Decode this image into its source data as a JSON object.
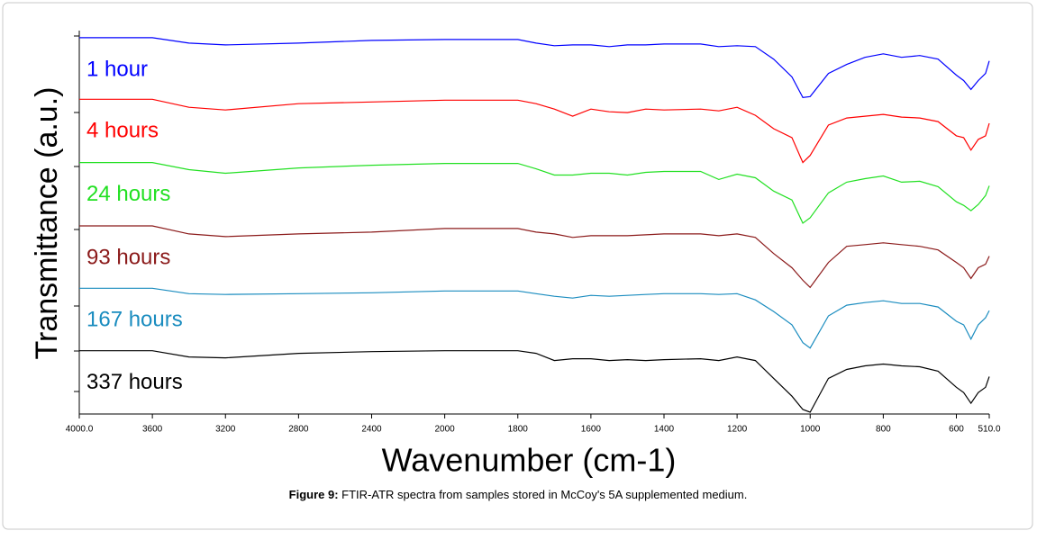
{
  "chart_data": {
    "type": "line",
    "xlabel": "Wavenumber (cm-1)",
    "ylabel": "Transmittance (a.u.)",
    "caption": {
      "label": "Figure 9:",
      "text": "FTIR-ATR spectra from samples stored in McCoy's 5A supplemented medium."
    },
    "x": [
      4000,
      3600,
      3400,
      3200,
      2800,
      2400,
      2000,
      1800,
      1750,
      1700,
      1650,
      1600,
      1550,
      1500,
      1450,
      1400,
      1300,
      1250,
      1200,
      1150,
      1100,
      1050,
      1020,
      1000,
      950,
      900,
      850,
      800,
      750,
      700,
      650,
      600,
      580,
      560,
      540,
      520,
      510
    ],
    "xlim": [
      4000,
      510
    ],
    "xticks": [
      {
        "value": 4000,
        "label": "4000.0"
      },
      3600,
      3200,
      2800,
      2400,
      2000,
      1800,
      1600,
      1400,
      1200,
      1000,
      800,
      600,
      {
        "value": 510,
        "label": "510.0"
      }
    ],
    "ylim": [
      0,
      430
    ],
    "series": [
      {
        "name": "1 hour",
        "color": "#0000ff",
        "values": [
          422,
          422,
          416,
          414,
          416,
          419,
          420,
          420,
          416,
          413,
          414,
          414,
          412,
          414,
          414,
          415,
          415,
          412,
          413,
          412,
          398,
          378,
          355,
          356,
          382,
          392,
          400,
          404,
          400,
          402,
          398,
          380,
          374,
          364,
          374,
          382,
          396
        ]
      },
      {
        "name": "4 hours",
        "color": "#ff0000",
        "values": [
          353,
          353,
          344,
          341,
          348,
          350,
          352,
          352,
          348,
          342,
          334,
          342,
          339,
          338,
          342,
          341,
          342,
          340,
          344,
          335,
          320,
          310,
          282,
          290,
          324,
          332,
          334,
          336,
          333,
          332,
          328,
          312,
          310,
          296,
          308,
          312,
          326
        ]
      },
      {
        "name": "24 hours",
        "color": "#22e022",
        "values": [
          282,
          282,
          274,
          270,
          276,
          279,
          281,
          281,
          275,
          268,
          268,
          270,
          270,
          268,
          271,
          272,
          272,
          263,
          269,
          265,
          250,
          240,
          214,
          220,
          248,
          260,
          264,
          267,
          260,
          261,
          255,
          238,
          234,
          228,
          235,
          245,
          256
        ]
      },
      {
        "name": "93 hours",
        "color": "#8b1a1a",
        "values": [
          211,
          211,
          202,
          199,
          202,
          204,
          208,
          208,
          204,
          202,
          198,
          200,
          200,
          200,
          201,
          202,
          202,
          200,
          202,
          198,
          180,
          164,
          150,
          142,
          170,
          188,
          190,
          192,
          190,
          188,
          184,
          170,
          164,
          152,
          164,
          168,
          177
        ]
      },
      {
        "name": "167 hours",
        "color": "#1a8cbf",
        "values": [
          141,
          141,
          135,
          134,
          135,
          136,
          138,
          138,
          135,
          132,
          130,
          133,
          132,
          133,
          134,
          135,
          135,
          134,
          135,
          128,
          115,
          100,
          80,
          74,
          110,
          122,
          125,
          127,
          124,
          124,
          120,
          104,
          100,
          84,
          100,
          108,
          116
        ]
      },
      {
        "name": "337 hours",
        "color": "#000000",
        "values": [
          71,
          71,
          64,
          63,
          68,
          70,
          71,
          71,
          68,
          60,
          62,
          62,
          60,
          61,
          60,
          61,
          62,
          60,
          64,
          60,
          40,
          20,
          5,
          2,
          40,
          50,
          54,
          56,
          54,
          53,
          48,
          30,
          24,
          12,
          24,
          30,
          42
        ]
      }
    ]
  }
}
